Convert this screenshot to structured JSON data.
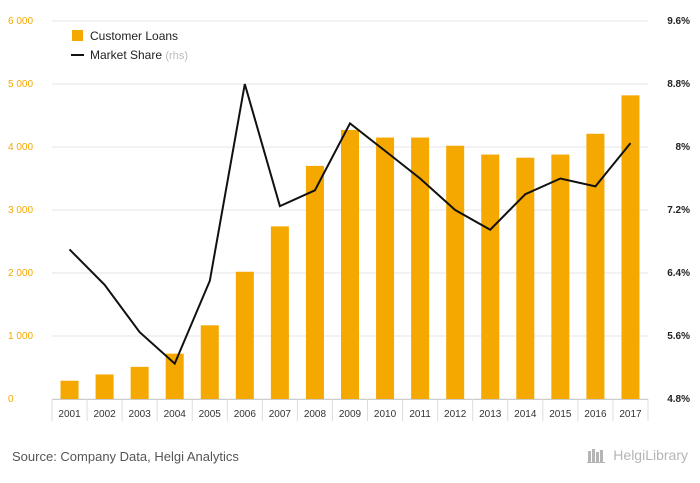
{
  "chart_data": {
    "type": "bar",
    "categories": [
      "2001",
      "2002",
      "2003",
      "2004",
      "2005",
      "2006",
      "2007",
      "2008",
      "2009",
      "2010",
      "2011",
      "2012",
      "2013",
      "2014",
      "2015",
      "2016",
      "2017"
    ],
    "series": [
      {
        "name": "Customer Loans",
        "type": "bar",
        "axis": "left",
        "color": "#f5a800",
        "values": [
          290,
          390,
          510,
          720,
          1170,
          2020,
          2740,
          3700,
          4270,
          4150,
          4150,
          4020,
          3880,
          3830,
          3880,
          4210,
          4820
        ]
      },
      {
        "name": "Market Share",
        "legend_suffix": "(rhs)",
        "type": "line",
        "axis": "right",
        "color": "#111111",
        "values": [
          6.7,
          6.25,
          5.65,
          5.25,
          6.3,
          8.8,
          7.25,
          7.45,
          8.3,
          7.95,
          7.6,
          7.2,
          6.95,
          7.4,
          7.6,
          7.5,
          8.05
        ]
      }
    ],
    "y_left": {
      "ylim": [
        0,
        6000
      ],
      "ticks": [
        0,
        1000,
        2000,
        3000,
        4000,
        5000,
        6000
      ],
      "tick_labels": [
        "0",
        "1 000",
        "2 000",
        "3 000",
        "4 000",
        "5 000",
        "6 000"
      ]
    },
    "y_right": {
      "ylim": [
        4.8,
        9.6
      ],
      "ticks": [
        4.8,
        5.6,
        6.4,
        7.2,
        8.0,
        8.8,
        9.6
      ],
      "tick_labels": [
        "4.8%",
        "5.6%",
        "6.4%",
        "7.2%",
        "8%",
        "8.8%",
        "9.6%"
      ]
    },
    "grid": true,
    "legend_position": "top-left"
  },
  "footer": {
    "source": "Source: Company Data, Helgi Analytics",
    "brand": "HelgiLibrary"
  }
}
